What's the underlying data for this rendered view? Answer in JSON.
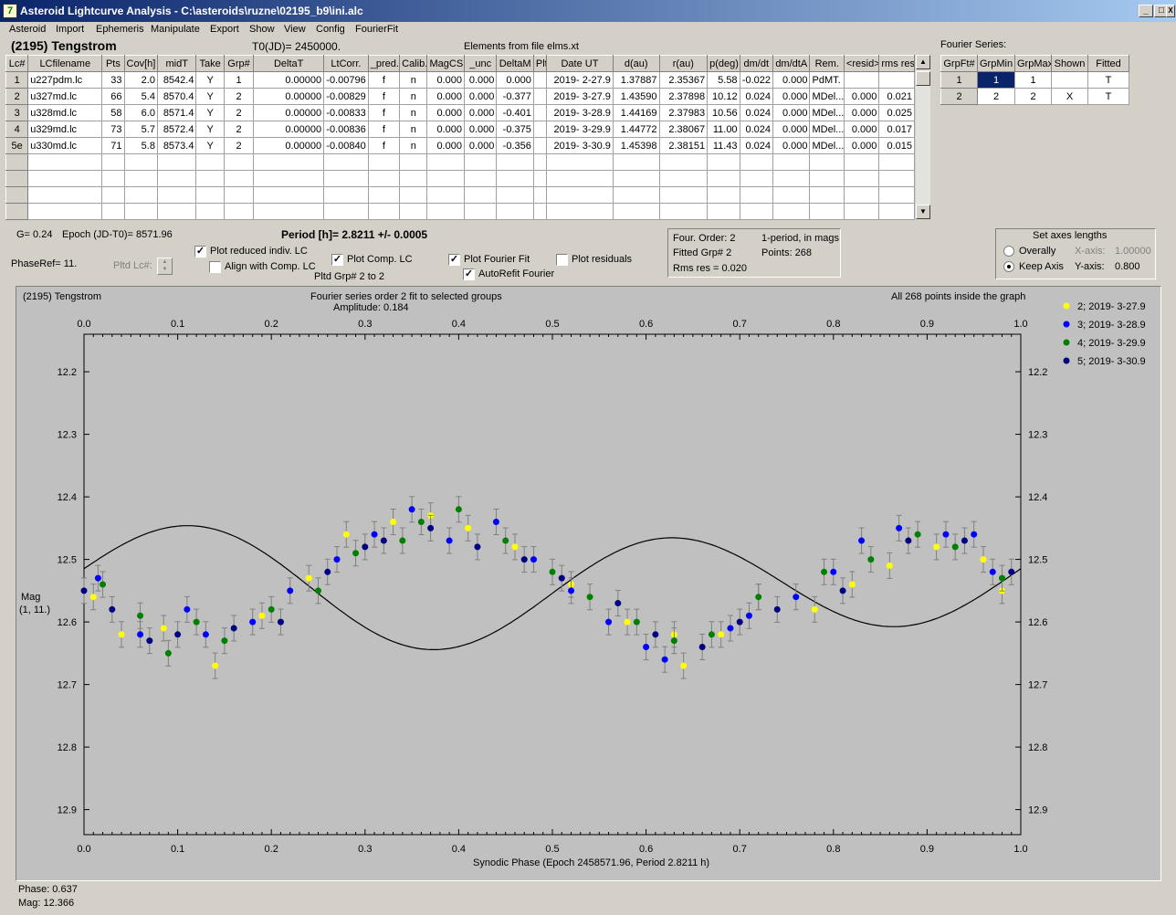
{
  "window": {
    "title": "Asteroid Lightcurve Analysis - C:\\asteroids\\ruzne\\02195_b9\\ini.alc",
    "minimize": "_",
    "maximize": "□",
    "close": "X"
  },
  "menu": [
    "Asteroid",
    "Import",
    "Ephemeris",
    "Manipulate",
    "Export",
    "Show",
    "View",
    "Config",
    "FourierFit"
  ],
  "header": {
    "asteroid": "(2195) Tengstrom",
    "t0": "T0(JD)= 2450000.",
    "elements": "Elements from file elms.xt"
  },
  "lc_table": {
    "columns": [
      "Lc#",
      "LCfilename",
      "Pts",
      "Cov[h]",
      "midT",
      "Take",
      "Grp#",
      "DeltaT",
      "LtCorr.",
      "_pred.",
      "Calib.",
      "MagCS",
      "_unc",
      "DeltaM",
      "Plt",
      "Date UT",
      "d(au)",
      "r(au)",
      "p(deg)",
      "dm/dt",
      "dm/dtA",
      "Rem.",
      "<resid>",
      "rms res"
    ],
    "rows": [
      [
        "1",
        "u227pdm.lc",
        "33",
        "2.0",
        "8542.4",
        "Y",
        "1",
        "0.00000",
        "-0.00796",
        "f",
        "n",
        "0.000",
        "0.000",
        "0.000",
        "",
        "2019- 2-27.9",
        "1.37887",
        "2.35367",
        "5.58",
        "-0.022",
        "0.000",
        "PdMT.",
        "",
        ""
      ],
      [
        "2",
        "u327md.lc",
        "66",
        "5.4",
        "8570.4",
        "Y",
        "2",
        "0.00000",
        "-0.00829",
        "f",
        "n",
        "0.000",
        "0.000",
        "-0.377",
        "",
        "2019- 3-27.9",
        "1.43590",
        "2.37898",
        "10.12",
        "0.024",
        "0.000",
        "MDel...",
        "0.000",
        "0.021"
      ],
      [
        "3",
        "u328md.lc",
        "58",
        "6.0",
        "8571.4",
        "Y",
        "2",
        "0.00000",
        "-0.00833",
        "f",
        "n",
        "0.000",
        "0.000",
        "-0.401",
        "",
        "2019- 3-28.9",
        "1.44169",
        "2.37983",
        "10.56",
        "0.024",
        "0.000",
        "MDel...",
        "0.000",
        "0.025"
      ],
      [
        "4",
        "u329md.lc",
        "73",
        "5.7",
        "8572.4",
        "Y",
        "2",
        "0.00000",
        "-0.00836",
        "f",
        "n",
        "0.000",
        "0.000",
        "-0.375",
        "",
        "2019- 3-29.9",
        "1.44772",
        "2.38067",
        "11.00",
        "0.024",
        "0.000",
        "MDel...",
        "0.000",
        "0.017"
      ],
      [
        "5e",
        "u330md.lc",
        "71",
        "5.8",
        "8573.4",
        "Y",
        "2",
        "0.00000",
        "-0.00840",
        "f",
        "n",
        "0.000",
        "0.000",
        "-0.356",
        "",
        "2019- 3-30.9",
        "1.45398",
        "2.38151",
        "11.43",
        "0.024",
        "0.000",
        "MDel...",
        "0.000",
        "0.015"
      ]
    ]
  },
  "fourier_table": {
    "label": "Fourier Series:",
    "columns": [
      "GrpFt#",
      "GrpMin",
      "GrpMax",
      "Shown",
      "Fitted"
    ],
    "rows": [
      [
        "1",
        "1",
        "1",
        "",
        "T"
      ],
      [
        "2",
        "2",
        "2",
        "X",
        "T"
      ]
    ]
  },
  "info": {
    "g": "G= 0.24",
    "epoch": "Epoch (JD-T0)= 8571.96",
    "period": "Period [h]= 2.8211 +/- 0.0005",
    "phaseref": "PhaseRef= 11.",
    "pltd_lc": "Pltd Lc#:",
    "pltd_grp": "Pltd Grp#  2  to  2"
  },
  "checks": {
    "plot_reduced": "Plot reduced indiv. LC",
    "align": "Align with Comp. LC",
    "plot_comp": "Plot Comp. LC",
    "plot_fourier": "Plot Fourier Fit",
    "autorefit": "AutoRefit Fourier",
    "plot_residuals": "Plot residuals",
    "check_mark": "✓"
  },
  "fourier_info": {
    "order": "Four. Order:  2",
    "fitted": "Fitted Grp# 2",
    "rms": "Rms res     = 0.020",
    "period_note": "1-period, in mags",
    "points": "Points: 268"
  },
  "axes_box": {
    "title": "Set axes lengths",
    "overally": "Overally",
    "keep": "Keep Axis",
    "xaxis": "X-axis:",
    "xval": "1.00000",
    "yaxis": "Y-axis:",
    "yval": "0.800"
  },
  "status": {
    "phase": "Phase:  0.637",
    "mag": "Mag:    12.366"
  },
  "chart_data": {
    "type": "scatter",
    "title_left": "(2195) Tengstrom",
    "title": "Fourier series order 2 fit to selected groups",
    "subtitle": "Amplitude: 0.184",
    "note": "All 268 points inside the graph",
    "xlabel": "Synodic Phase (Epoch 2458571.96, Period 2.8211 h)",
    "ylabel": "Mag",
    "ylabel2": "(1, 11.)",
    "xlim": [
      0,
      1
    ],
    "ylim": [
      12.14,
      12.94
    ],
    "xticks": [
      "0.0",
      "0.1",
      "0.2",
      "0.3",
      "0.4",
      "0.5",
      "0.6",
      "0.7",
      "0.8",
      "0.9",
      "1.0"
    ],
    "yticks": [
      "12.2",
      "12.3",
      "12.4",
      "12.5",
      "12.6",
      "12.7",
      "12.8",
      "12.9"
    ],
    "grid": false,
    "legend_position": "right",
    "fourier_fit": {
      "mean": 12.541,
      "c1": -0.0196,
      "s1": 0.0069,
      "c2": -0.0065,
      "s2": -0.0845
    },
    "series": [
      {
        "name": "2; 2019- 3-27.9",
        "color": "#ffff00",
        "points": [
          [
            0.01,
            12.56
          ],
          [
            0.04,
            12.62
          ],
          [
            0.085,
            12.61
          ],
          [
            0.14,
            12.67
          ],
          [
            0.19,
            12.59
          ],
          [
            0.24,
            12.53
          ],
          [
            0.28,
            12.46
          ],
          [
            0.33,
            12.44
          ],
          [
            0.37,
            12.43
          ],
          [
            0.41,
            12.45
          ],
          [
            0.46,
            12.48
          ],
          [
            0.52,
            12.54
          ],
          [
            0.58,
            12.6
          ],
          [
            0.63,
            12.62
          ],
          [
            0.64,
            12.67
          ],
          [
            0.68,
            12.62
          ],
          [
            0.72,
            12.56
          ],
          [
            0.78,
            12.58
          ],
          [
            0.82,
            12.54
          ],
          [
            0.86,
            12.51
          ],
          [
            0.91,
            12.48
          ],
          [
            0.96,
            12.5
          ],
          [
            0.98,
            12.55
          ]
        ]
      },
      {
        "name": "3; 2019- 3-28.9",
        "color": "#0000ff",
        "points": [
          [
            0.015,
            12.53
          ],
          [
            0.06,
            12.62
          ],
          [
            0.11,
            12.58
          ],
          [
            0.13,
            12.62
          ],
          [
            0.18,
            12.6
          ],
          [
            0.22,
            12.55
          ],
          [
            0.27,
            12.5
          ],
          [
            0.31,
            12.46
          ],
          [
            0.35,
            12.42
          ],
          [
            0.39,
            12.47
          ],
          [
            0.44,
            12.44
          ],
          [
            0.48,
            12.5
          ],
          [
            0.52,
            12.55
          ],
          [
            0.56,
            12.6
          ],
          [
            0.6,
            12.64
          ],
          [
            0.62,
            12.66
          ],
          [
            0.69,
            12.61
          ],
          [
            0.71,
            12.59
          ],
          [
            0.76,
            12.56
          ],
          [
            0.8,
            12.52
          ],
          [
            0.83,
            12.47
          ],
          [
            0.87,
            12.45
          ],
          [
            0.92,
            12.46
          ],
          [
            0.95,
            12.46
          ],
          [
            0.97,
            12.52
          ]
        ]
      },
      {
        "name": "4; 2019- 3-29.9",
        "color": "#008000",
        "points": [
          [
            0.02,
            12.54
          ],
          [
            0.06,
            12.59
          ],
          [
            0.09,
            12.65
          ],
          [
            0.12,
            12.6
          ],
          [
            0.15,
            12.63
          ],
          [
            0.2,
            12.58
          ],
          [
            0.25,
            12.55
          ],
          [
            0.29,
            12.49
          ],
          [
            0.34,
            12.47
          ],
          [
            0.36,
            12.44
          ],
          [
            0.4,
            12.42
          ],
          [
            0.45,
            12.47
          ],
          [
            0.5,
            12.52
          ],
          [
            0.54,
            12.56
          ],
          [
            0.59,
            12.6
          ],
          [
            0.63,
            12.63
          ],
          [
            0.67,
            12.62
          ],
          [
            0.72,
            12.56
          ],
          [
            0.79,
            12.52
          ],
          [
            0.84,
            12.5
          ],
          [
            0.89,
            12.46
          ],
          [
            0.93,
            12.48
          ],
          [
            0.98,
            12.53
          ]
        ]
      },
      {
        "name": "5; 2019- 3-30.9",
        "color": "#000080",
        "points": [
          [
            0.0,
            12.55
          ],
          [
            0.03,
            12.58
          ],
          [
            0.07,
            12.63
          ],
          [
            0.1,
            12.62
          ],
          [
            0.16,
            12.61
          ],
          [
            0.21,
            12.6
          ],
          [
            0.26,
            12.52
          ],
          [
            0.3,
            12.48
          ],
          [
            0.32,
            12.47
          ],
          [
            0.37,
            12.45
          ],
          [
            0.42,
            12.48
          ],
          [
            0.47,
            12.5
          ],
          [
            0.51,
            12.53
          ],
          [
            0.57,
            12.57
          ],
          [
            0.61,
            12.62
          ],
          [
            0.66,
            12.64
          ],
          [
            0.7,
            12.6
          ],
          [
            0.74,
            12.58
          ],
          [
            0.81,
            12.55
          ],
          [
            0.88,
            12.47
          ],
          [
            0.94,
            12.47
          ],
          [
            0.99,
            12.52
          ]
        ]
      }
    ]
  }
}
